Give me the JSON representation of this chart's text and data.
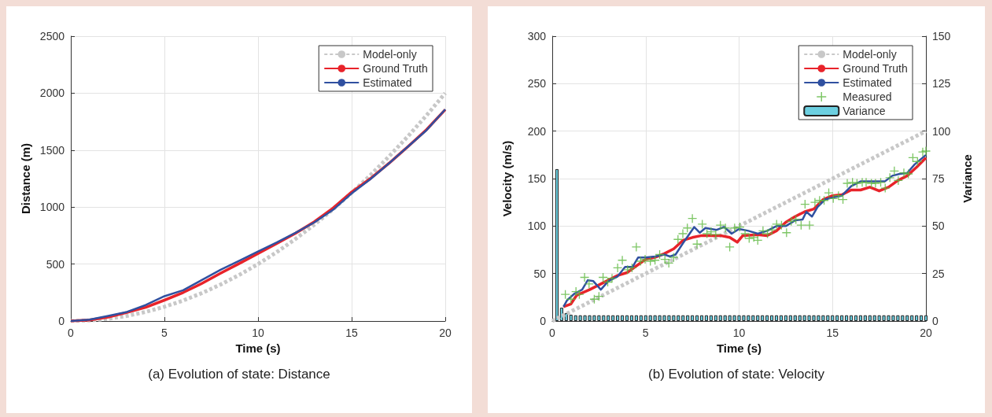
{
  "chart_data": [
    {
      "type": "line",
      "title": "(a) Evolution of state: Distance",
      "xlabel": "Time (s)",
      "ylabel": "Distance (m)",
      "xlim": [
        0,
        20
      ],
      "xticks": [
        0,
        5,
        10,
        15,
        20
      ],
      "ylim": [
        0,
        2500
      ],
      "yticks": [
        0,
        500,
        1000,
        1500,
        2000,
        2500
      ],
      "grid": true,
      "legend": "top right",
      "marker": "none",
      "series": [
        {
          "name": "Model-only",
          "color": "#c8c8c8",
          "line_style": "dashed",
          "x": [
            0,
            1,
            2,
            3,
            4,
            5,
            6,
            7,
            8,
            9,
            10,
            11,
            12,
            13,
            14,
            15,
            16,
            17,
            18,
            19,
            20
          ],
          "values": [
            0,
            5,
            20,
            45,
            80,
            125,
            180,
            245,
            320,
            405,
            500,
            605,
            720,
            845,
            980,
            1125,
            1280,
            1445,
            1620,
            1805,
            2000
          ]
        },
        {
          "name": "Ground Truth",
          "color": "#e8232a",
          "line_style": "solid",
          "x": [
            0,
            1,
            2,
            3,
            4,
            5,
            6,
            7,
            8,
            9,
            10,
            11,
            12,
            13,
            14,
            15,
            16,
            17,
            18,
            19,
            20
          ],
          "values": [
            0,
            8,
            35,
            75,
            120,
            183,
            250,
            330,
            420,
            505,
            592,
            680,
            770,
            870,
            990,
            1132,
            1250,
            1385,
            1530,
            1680,
            1855
          ]
        },
        {
          "name": "Estimated",
          "color": "#3050a0",
          "line_style": "solid",
          "x": [
            0,
            1,
            2,
            3,
            4,
            5,
            6,
            7,
            8,
            9,
            10,
            11,
            12,
            13,
            14,
            15,
            16,
            17,
            18,
            19,
            20
          ],
          "values": [
            0,
            12,
            45,
            80,
            140,
            218,
            270,
            360,
            450,
            530,
            611,
            690,
            775,
            865,
            975,
            1120,
            1245,
            1385,
            1530,
            1675,
            1858
          ]
        }
      ]
    },
    {
      "type": "line",
      "title": "(b) Evolution of state: Velocity",
      "xlabel": "Time (s)",
      "ylabel": "Velocity (m/s)",
      "y2label": "Variance",
      "xlim": [
        0,
        20
      ],
      "xticks": [
        0,
        5,
        10,
        15,
        20
      ],
      "ylim": [
        0,
        300
      ],
      "yticks": [
        0,
        50,
        100,
        150,
        200,
        250,
        300
      ],
      "y2lim": [
        0,
        150
      ],
      "y2ticks": [
        0,
        25,
        50,
        75,
        100,
        125,
        150
      ],
      "grid": true,
      "legend": "top right",
      "marker": "none",
      "series": [
        {
          "name": "Model-only",
          "color": "#c8c8c8",
          "line_style": "dashed",
          "x": [
            0,
            20
          ],
          "values": [
            0,
            200
          ]
        },
        {
          "name": "Ground Truth",
          "color": "#e8232a",
          "line_style": "solid",
          "x": [
            0.6,
            1,
            1.3,
            2,
            2.5,
            3,
            3.5,
            4,
            4.5,
            5,
            5.5,
            6,
            6.5,
            7,
            7.5,
            8,
            9,
            9.5,
            9.9,
            10.2,
            11,
            11.5,
            12,
            12.5,
            13,
            13.5,
            14,
            14.5,
            15,
            15.5,
            16,
            16.5,
            17,
            17.5,
            18,
            18.5,
            19,
            19.5,
            20
          ],
          "values": [
            15,
            18,
            27,
            33,
            38,
            43,
            48,
            51,
            58,
            65,
            67,
            71,
            76,
            85,
            88,
            90,
            90,
            88,
            83,
            90,
            91,
            90,
            95,
            104,
            110,
            115,
            118,
            128,
            132,
            133,
            138,
            138,
            141,
            137,
            141,
            148,
            153,
            162,
            172
          ]
        },
        {
          "name": "Estimated",
          "color": "#3050a0",
          "line_style": "solid",
          "x": [
            0.6,
            0.8,
            1.2,
            1.6,
            1.9,
            2.2,
            2.6,
            3,
            3.5,
            3.9,
            4.3,
            4.6,
            5,
            5.5,
            6,
            6.3,
            6.6,
            7,
            7.6,
            7.9,
            8.2,
            8.8,
            9.2,
            9.6,
            10,
            10.5,
            11,
            11.5,
            12,
            12.5,
            13,
            13.4,
            13.6,
            13.9,
            14.2,
            14.6,
            15,
            15.5,
            16,
            16.5,
            17,
            17.5,
            17.8,
            18.2,
            18.6,
            19,
            19.4,
            20
          ],
          "values": [
            15,
            22,
            29,
            33,
            43,
            42,
            33,
            42,
            47,
            57,
            57,
            67,
            67,
            68,
            70,
            68,
            70,
            82,
            99,
            93,
            98,
            96,
            99,
            92,
            97,
            95,
            92,
            95,
            100,
            100,
            106,
            107,
            115,
            110,
            120,
            128,
            130,
            132,
            142,
            147,
            147,
            147,
            147,
            153,
            155,
            156,
            165,
            175
          ]
        },
        {
          "type": "scatter",
          "name": "Measured",
          "color": "#5cb83e",
          "marker": "cross",
          "x": [
            0.7,
            1.0,
            1.27,
            1.45,
            1.73,
            1.97,
            2.25,
            2.5,
            2.72,
            2.97,
            3.2,
            3.5,
            3.75,
            4.03,
            4.27,
            4.5,
            4.73,
            4.97,
            5.25,
            5.5,
            5.75,
            6.03,
            6.24,
            6.5,
            6.73,
            6.99,
            7.23,
            7.5,
            7.75,
            8.03,
            8.28,
            8.5,
            8.75,
            9.0,
            9.27,
            9.5,
            9.76,
            10.04,
            10.32,
            10.54,
            10.79,
            11.0,
            11.28,
            11.52,
            11.76,
            12.01,
            12.27,
            12.54,
            12.79,
            13.04,
            13.32,
            13.53,
            13.77,
            14.06,
            14.31,
            14.55,
            14.8,
            15.04,
            15.32,
            15.56,
            15.79,
            16.07,
            16.31,
            16.59,
            16.8,
            17.08,
            17.3,
            17.58,
            17.82,
            18.07,
            18.31,
            18.52,
            18.82,
            19.06,
            19.3,
            19.55,
            19.83,
            20.0
          ],
          "values": [
            28,
            23,
            31,
            28,
            46,
            39,
            23,
            26,
            46,
            41,
            45,
            56,
            64,
            54,
            56,
            78,
            63,
            65,
            63,
            64,
            70,
            65,
            61,
            67,
            86,
            92,
            98,
            108,
            81,
            102,
            92,
            94,
            91,
            101,
            98,
            78,
            98,
            99,
            92,
            87,
            88,
            85,
            95,
            92,
            96,
            102,
            101,
            93,
            105,
            107,
            101,
            123,
            101,
            125,
            127,
            127,
            135,
            129,
            132,
            128,
            145,
            146,
            145,
            146,
            146,
            145,
            145,
            146,
            140,
            151,
            158,
            148,
            156,
            155,
            172,
            168,
            178,
            179
          ]
        },
        {
          "type": "bar",
          "name": "Variance",
          "color": "#6ccfe0",
          "axis": "y2",
          "x": [
            0.25,
            0.5,
            0.75,
            1,
            1.25,
            1.5,
            1.75,
            2,
            2.25,
            2.5,
            2.75,
            3,
            3.25,
            3.5,
            3.75,
            4,
            4.25,
            4.5,
            4.75,
            5,
            5.25,
            5.5,
            5.75,
            6,
            6.25,
            6.5,
            6.75,
            7,
            7.25,
            7.5,
            7.75,
            8,
            8.25,
            8.5,
            8.75,
            9,
            9.25,
            9.5,
            9.75,
            10,
            10.25,
            10.5,
            10.75,
            11,
            11.25,
            11.5,
            11.75,
            12,
            12.25,
            12.5,
            12.75,
            13,
            13.25,
            13.5,
            13.75,
            14,
            14.25,
            14.5,
            14.75,
            15,
            15.25,
            15.5,
            15.75,
            16,
            16.25,
            16.5,
            16.75,
            17,
            17.25,
            17.5,
            17.75,
            18,
            18.25,
            18.5,
            18.75,
            19,
            19.25,
            19.5,
            19.75,
            20
          ],
          "values": [
            80,
            7,
            4.2,
            3.3,
            3,
            3,
            3,
            3,
            3,
            3,
            3,
            3,
            3,
            3,
            3,
            3,
            3,
            3,
            3,
            3,
            3,
            3,
            3,
            3,
            3,
            3,
            3,
            3,
            3,
            3,
            3,
            3,
            3,
            3,
            3,
            3,
            3,
            3,
            3,
            3,
            3,
            3,
            3,
            3,
            3,
            3,
            3,
            3,
            3,
            3,
            3,
            3,
            3,
            3,
            3,
            3,
            3,
            3,
            3,
            3,
            3,
            3,
            3,
            3,
            3,
            3,
            3,
            3,
            3,
            3,
            3,
            3,
            3,
            3,
            3,
            3,
            3,
            3,
            3,
            3
          ]
        }
      ]
    }
  ]
}
